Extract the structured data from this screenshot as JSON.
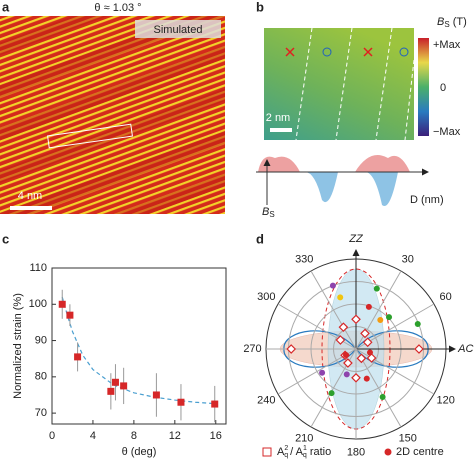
{
  "figure": {
    "a": {
      "label": "a",
      "title": "θ ≈ 1.03 °",
      "badge": "Simulated",
      "scale_bar": "4 nm"
    },
    "b": {
      "label": "b",
      "colorbar_symbol": "B",
      "colorbar_subscript": "S",
      "colorbar_unit": "(T)",
      "colorbar_ticks": [
        "+Max",
        "0",
        "−Max"
      ],
      "scale_bar": "2 nm",
      "profile_y_symbol": "B",
      "profile_y_subscript": "S",
      "profile_x_label": "D (nm)"
    }
  },
  "chart_data": [
    {
      "type": "scatter",
      "label": "c",
      "x_label": "θ (deg)",
      "y_label": "Normalized strain (%)",
      "x": [
        1.0,
        1.75,
        2.5,
        5.75,
        6.2,
        7.0,
        10.2,
        12.6,
        15.9
      ],
      "values": [
        100,
        97,
        85.5,
        76,
        78.5,
        77.5,
        75,
        73,
        72.5
      ],
      "errors": [
        4,
        3,
        4,
        5,
        5,
        5,
        6,
        5,
        5
      ],
      "color": "#d62728",
      "fit": {
        "x": [
          1,
          1.5,
          2,
          3,
          4,
          6,
          8,
          10,
          12,
          14,
          16
        ],
        "values": [
          102,
          97,
          92.5,
          86,
          82,
          77.8,
          75.6,
          74.4,
          73.6,
          73,
          72.6
        ],
        "color": "#4a9fd0"
      },
      "xlim": [
        0,
        17
      ],
      "xticks": [
        0,
        4,
        8,
        12,
        16
      ],
      "ylim": [
        67,
        110
      ],
      "yticks": [
        70,
        80,
        90,
        100,
        110
      ]
    },
    {
      "type": "polar",
      "label": "d",
      "theta_ticks": [
        {
          "value": 0,
          "label": "ZZ"
        },
        30,
        60,
        {
          "value": 90,
          "label": "AC"
        },
        120,
        150,
        180,
        210,
        240,
        270,
        300,
        330
      ],
      "rlim": [
        0,
        1
      ],
      "series": [
        {
          "name_parts": [
            "A",
            "2",
            "q",
            "/ A",
            "1",
            "q",
            "ratio"
          ],
          "marker": "diamond",
          "color": "#d62728",
          "theta": [
            0,
            30,
            60,
            90,
            120,
            150,
            180,
            210,
            240,
            270,
            300,
            330
          ],
          "r": [
            0.33,
            0.2,
            0.15,
            0.7,
            0.2,
            0.12,
            0.32,
            0.18,
            0.14,
            0.72,
            0.2,
            0.28
          ]
        },
        {
          "name": "2D centre",
          "marker": "dot",
          "color": "#d62728",
          "theta": [
            340,
            19,
            343,
            17,
            46,
            40,
            68,
            235,
            209,
            151,
            239,
            104,
            200,
            160
          ],
          "r": [
            0.75,
            0.71,
            0.6,
            0.49,
            0.51,
            0.42,
            0.74,
            0.46,
            0.56,
            0.61,
            0.13,
            0.16,
            0.3,
            0.35
          ],
          "point_colors": [
            "#8e44ad",
            "#2ca02c",
            "#f1c40f",
            "#d62728",
            "#2ca02c",
            "#f39c12",
            "#2ca02c",
            "#8e44ad",
            "#2ca02c",
            "#2ca02c",
            "#d62728",
            "#d62728",
            "#8e44ad",
            "#d62728"
          ]
        }
      ]
    }
  ]
}
